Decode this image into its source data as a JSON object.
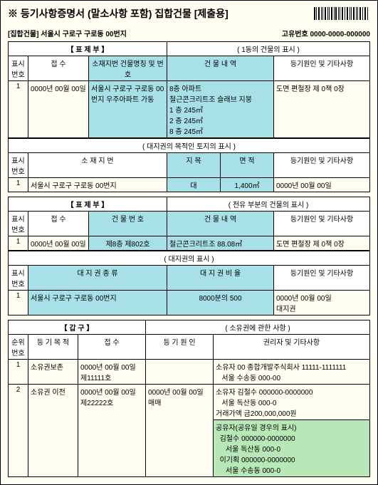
{
  "title": "※ 등기사항증명서 (말소사항 포함)  집합건물  [제출용]",
  "subhead_left": "[집합건물] 서울시 구로구 구로동 00번지",
  "subhead_right": "고유번호 0000-0000-000000",
  "t1": {
    "section": "【  표         제         부  】",
    "sub": "( 1동의 건물의 표시 )",
    "h1": "표시\n번호",
    "h2": "접 수",
    "h3": "소재지번  건물명칭 및 번호",
    "h4": "건 물 내 역",
    "h5": "등기원인 및 기타사항",
    "r1_c1": "1",
    "r1_c2": "0000년 00월 00일",
    "r1_c3": "서울시 구로구 구로동 00번지 우주아파트 가동",
    "r1_c4": "8층 아파트\n철근콘크리트조 슬래브 지붕\n1 층 245㎡\n2 층 245㎡\n8 층 245㎡",
    "r1_c5": "도면 편철장 제 0책 0장"
  },
  "t2": {
    "sub": "( 대지권의 목적인 토지의 표시 )",
    "h1": "표시\n번호",
    "h2": "소 재 지 번",
    "h3": "지 목",
    "h4": "면 적",
    "h5": "등기원인 및 기타사항",
    "r1_c1": "1",
    "r1_c2": "서울시 구로구 구로동 00번지",
    "r1_c3": "대",
    "r1_c4": "1,400㎡",
    "r1_c5": "0000년 00월 00일"
  },
  "t3": {
    "section": "【  표         제         부  】",
    "sub": "( 전유 부분의 건물의 표시 )",
    "h1": "표시\n번호",
    "h2": "접 수",
    "h3": "건 물 번 호",
    "h4": "건 물 내 역",
    "h5": "등기원인 및 기타사항",
    "r1_c1": "1",
    "r1_c2": "0000년 00월 00일",
    "r1_c3": "제8층 제802호",
    "r1_c4": "철근콘크리트조 88.08㎡",
    "r1_c5": "도면 편철장 제 0책 0장"
  },
  "t4": {
    "sub": "( 대지권의 표시 )",
    "h1": "표시\n번호",
    "h2": "대 지 권 종 류",
    "h3": "대 지 권 비 율",
    "h4": "등기원인 및 기타사항",
    "r1_c1": "1",
    "r1_c2": "서울시 구로구 구로동 00번지",
    "r1_c3": "8000분의 500",
    "r1_c4": "0000년 00월 00일\n대지권"
  },
  "t5": {
    "section": "【  갑              구  】",
    "sub": "( 소유권에 관한 사항 )",
    "h1": "순위\n번호",
    "h2": "등 기 목 적",
    "h3": "접 수",
    "h4": "등 기 원 인",
    "h5": "권리자 및 기타사항",
    "r1_c1": "1",
    "r1_c2": "소유권보존",
    "r1_c3": "0000년 00월 00일\n제11111호",
    "r1_c4": "",
    "r1_c5": "소유자 00 종합개발주식회사 11111-1111111\n   서울 수송동 000-00",
    "r2_c1": "2",
    "r2_c2": "소유권 이전",
    "r2_c3": "0000년 00월 00일\n제22222호",
    "r2_c4": "0000년 00월 00일\n매매",
    "r2_c5": "소유자 김철수 000000-0000000\n   서울 독산동 000-0\n거래가액 금200,000,000원",
    "r2_green": "공유자(공유일 경우의 표시)\n  김철수 000000-0000000\n     서울 독산동 000-0\n  이기획 000000-0000000\n     서울 수송동 000-0"
  },
  "colors": {
    "page_bg": "#fffef0",
    "blue": "#a8e0e8",
    "green": "#b8e8b8"
  }
}
